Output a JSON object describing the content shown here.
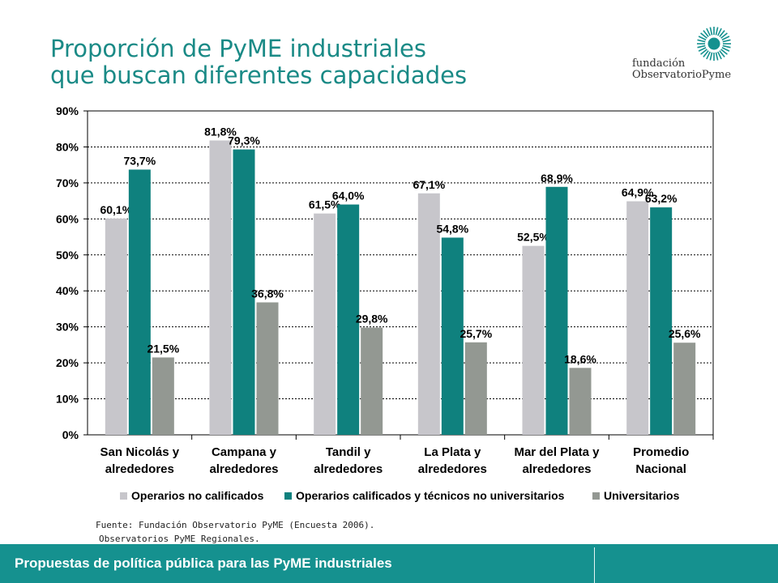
{
  "title_line1": "Proporción de PyME industriales",
  "title_line2": "que buscan diferentes capacidades",
  "logo": {
    "line1": "fundación",
    "line2": "ObservatorioPyme"
  },
  "source_line1": "Fuente: Fundación Observatorio PyME (Encuesta 2006).",
  "source_line2": "Observatorios PyME Regionales.",
  "footer": "Propuestas de política pública para las PyME industriales",
  "colors": {
    "title": "#1a8a86",
    "footer": "#15918f",
    "series": [
      "#c7c6cb",
      "#0f817e",
      "#939892"
    ]
  },
  "chart_data": {
    "type": "bar",
    "categories": [
      [
        "San Nicolás y",
        "alrededores"
      ],
      [
        "Campana y",
        "alrededores"
      ],
      [
        "Tandil y",
        "alrededores"
      ],
      [
        "La Plata y",
        "alrededores"
      ],
      [
        "Mar del Plata y",
        "alrededores"
      ],
      [
        "Promedio",
        "Nacional"
      ]
    ],
    "series": [
      {
        "name": "Operarios no calificados",
        "values": [
          60.1,
          81.8,
          61.5,
          67.1,
          52.5,
          64.9
        ],
        "labels": [
          "60,1%",
          "81,8%",
          "61,5%",
          "67,1%",
          "52,5%",
          "64,9%"
        ]
      },
      {
        "name": "Operarios calificados y técnicos no universitarios",
        "values": [
          73.7,
          79.3,
          64.0,
          54.8,
          68.9,
          63.2
        ],
        "labels": [
          "73,7%",
          "79,3%",
          "64,0%",
          "54,8%",
          "68,9%",
          "63,2%"
        ]
      },
      {
        "name": "Universitarios",
        "values": [
          21.5,
          36.8,
          29.8,
          25.7,
          18.6,
          25.6
        ],
        "labels": [
          "21,5%",
          "36,8%",
          "29,8%",
          "25,7%",
          "18,6%",
          "25,6%"
        ]
      }
    ],
    "yticks": [
      "0%",
      "10%",
      "20%",
      "30%",
      "40%",
      "50%",
      "60%",
      "70%",
      "80%",
      "90%"
    ],
    "ylim": [
      0,
      90
    ],
    "grid": true,
    "legend_position": "bottom"
  }
}
